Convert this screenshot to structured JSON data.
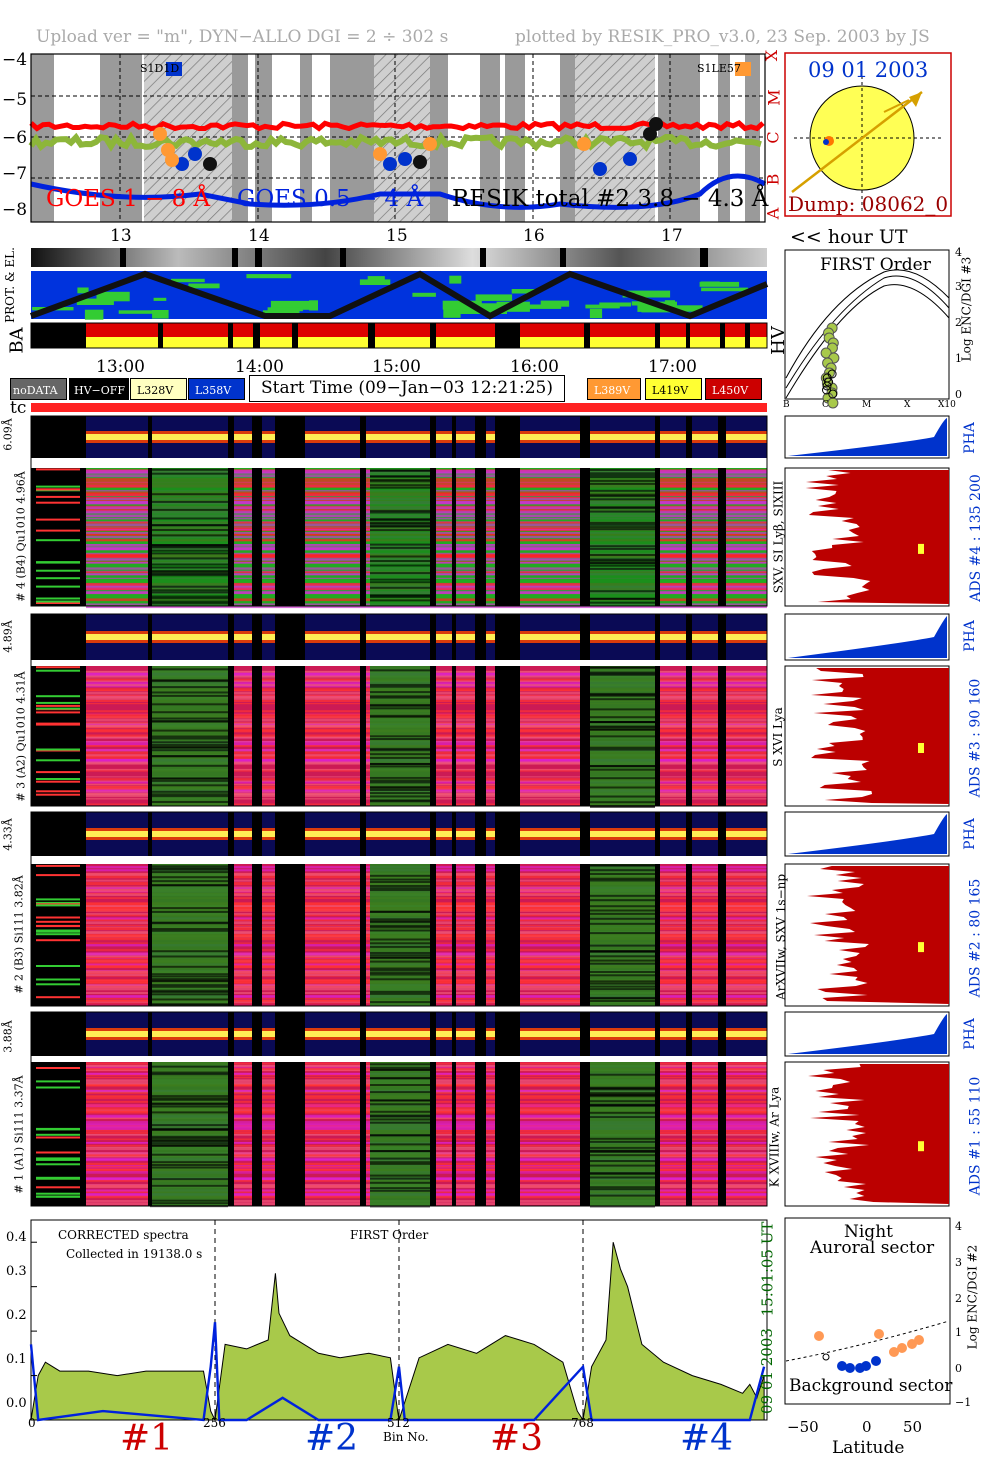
{
  "header": {
    "left": "Upload ver = \"m\", DYN−ALLO DGI =   2 ÷ 302 s",
    "right": "plotted by RESIK_PRO_v3.0, 23 Sep. 2003 by JS"
  },
  "goes_panel": {
    "yticks": [
      "−4",
      "−5",
      "−6",
      "−7",
      "−8"
    ],
    "class_letters": [
      "X",
      "M",
      "C",
      "B",
      "A"
    ],
    "flare_left": "S1D1D",
    "flare_right": "S1LE57",
    "label_goes18": "GOES 1 − 8 Å",
    "label_goes05": "GOES 0.5 − 4 Å",
    "label_resik": "RESIK total #2  3.8 − 4.3 Å",
    "colors": {
      "goes18": "#ff0000",
      "goes05": "#0022dd",
      "resik": "#000000"
    }
  },
  "sun_panel": {
    "date": "09 01 2003",
    "dump": "Dump: 08062_0"
  },
  "time_axis": {
    "hours_top": [
      "13",
      "14",
      "15",
      "16",
      "17"
    ],
    "hour_ut_label": "<< hour UT",
    "times": [
      "13:00",
      "14:00",
      "15:00",
      "16:00",
      "17:00"
    ]
  },
  "side_labels": {
    "prot_el": "PROT. & EL.",
    "ba": "BA",
    "hv": "HV",
    "tc": "tc"
  },
  "first_order": {
    "title": "FIRST Order",
    "ylabel": "Log ENC/DGI #3",
    "yticks": [
      "0",
      "1",
      "2",
      "3",
      "4"
    ],
    "xticks": [
      "B",
      "C",
      "M",
      "X",
      "X10"
    ]
  },
  "legend": {
    "items": [
      {
        "label": "noDATA",
        "bg": "#666666",
        "fg": "#ffffff"
      },
      {
        "label": "HV−OFF",
        "bg": "#000000",
        "fg": "#ffffff"
      },
      {
        "label": "L328V",
        "bg": "#ffffc0",
        "fg": "#000000"
      },
      {
        "label": "L358V",
        "bg": "#0033cc",
        "fg": "#ffffff"
      },
      {
        "label": "L389V",
        "bg": "#ff9933",
        "fg": "#ffffff"
      },
      {
        "label": "L419V",
        "bg": "#ffff33",
        "fg": "#000000"
      },
      {
        "label": "L450V",
        "bg": "#cc0000",
        "fg": "#ffffff"
      }
    ],
    "start_time": "Start Time (09−Jan−03 12:21:25)"
  },
  "channels": [
    {
      "pha_left": "6.09Å",
      "left": "# 4 (B4) Qu1010 4.96Å",
      "ion": "SXV, SI Lyβ, SIXIII",
      "ads": "ADS #4 :  135 200"
    },
    {
      "pha_left": "4.89Å",
      "left": "# 3 (A2) Qu1010 4.31Å",
      "ion": "S XVI Lya",
      "ads": "ADS #3 :  90 160"
    },
    {
      "pha_left": "4.33Å",
      "left": "# 2 (B3) Si111 3.82Å",
      "ion": "ArXVIIw, SXV 1s−np",
      "ads": "ADS #2 :  80 165"
    },
    {
      "pha_left": "3.88Å",
      "left": "# 1 (A1) Si111 3.37Å",
      "ion": "K XVIIIw, Ar Lya",
      "ads": "ADS #1 :  55 110"
    }
  ],
  "pha_label": "PHA",
  "spectrum": {
    "title1": "CORRECTED spectra",
    "title2": "Collected in 19138.0 s",
    "order": "FIRST Order",
    "date_vertical": "09 01 2003",
    "time_vertical": "15:01:05 UT",
    "xlabel": "Bin No.",
    "xticks": [
      "0",
      "256",
      "512",
      "768"
    ],
    "yticks": [
      "0.0",
      "0.1",
      "0.2",
      "0.3",
      "0.4"
    ],
    "chan_labels": [
      {
        "label": "#1",
        "color": "#cc0000"
      },
      {
        "label": "#2",
        "color": "#0033cc"
      },
      {
        "label": "#3",
        "color": "#cc0000"
      },
      {
        "label": "#4",
        "color": "#0033cc"
      }
    ]
  },
  "aurora": {
    "night": "Night",
    "auroral": "Auroral sector",
    "background": "Background sector",
    "xlabel": "Latitude",
    "ylabel": "Log ENC/DGI #2",
    "xticks": [
      "−50",
      "0",
      "50"
    ],
    "yticks": [
      "−1",
      "0",
      "1",
      "2",
      "3",
      "4"
    ]
  },
  "chart_data": {
    "type": "line",
    "title": "CORRECTED spectra",
    "xlabel": "Bin No.",
    "ylabel": "",
    "xlim": [
      0,
      1024
    ],
    "ylim": [
      0,
      0.45
    ],
    "series": [
      {
        "name": "",
        "color": "#a8c94a",
        "x": [
          0,
          10,
          20,
          40,
          80,
          120,
          160,
          200,
          240,
          250,
          256,
          270,
          300,
          330,
          340,
          345,
          360,
          380,
          400,
          430,
          470,
          500,
          510,
          512,
          540,
          580,
          620,
          660,
          680,
          700,
          740,
          760,
          768,
          780,
          800,
          810,
          820,
          830,
          850,
          880,
          920,
          960,
          990,
          1000,
          1010,
          1020
        ],
        "y": [
          0.0,
          0.1,
          0.13,
          0.11,
          0.11,
          0.1,
          0.11,
          0.11,
          0.11,
          0.02,
          0.0,
          0.17,
          0.16,
          0.18,
          0.33,
          0.24,
          0.19,
          0.17,
          0.15,
          0.14,
          0.15,
          0.14,
          0.02,
          0.0,
          0.14,
          0.17,
          0.15,
          0.19,
          0.18,
          0.17,
          0.13,
          0.02,
          0.0,
          0.12,
          0.18,
          0.4,
          0.34,
          0.3,
          0.17,
          0.13,
          0.1,
          0.08,
          0.06,
          0.08,
          0.05,
          0.1
        ]
      },
      {
        "name": "",
        "color": "#0022dd",
        "x": [
          0,
          10,
          100,
          240,
          250,
          256,
          262,
          300,
          350,
          400,
          500,
          512,
          520,
          600,
          700,
          768,
          780,
          900,
          1000,
          1020
        ],
        "y": [
          0.17,
          0.0,
          0.02,
          0.0,
          0.12,
          0.22,
          0.0,
          0.0,
          0.05,
          0.0,
          0.0,
          0.12,
          0.0,
          0.0,
          0.0,
          0.12,
          0.0,
          0.0,
          0.0,
          0.12
        ]
      }
    ]
  }
}
